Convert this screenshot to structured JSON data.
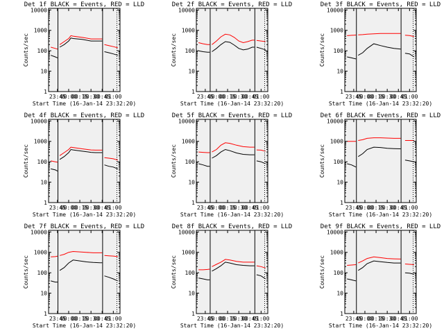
{
  "figure": {
    "xlabel": "Start Time (16-Jan-14 23:32:20)",
    "ylabel": "Counts/sec",
    "x_tick_labels": [
      "23:45",
      "00:00",
      "00:15",
      "00:30",
      "00:45",
      "01:00"
    ],
    "x_tick_hours": [
      23.75,
      24.0,
      24.25,
      24.5,
      24.75,
      25.0
    ],
    "x_range_hours": [
      23.55,
      25.15
    ],
    "y_tick_labels": [
      "1",
      "10",
      "100",
      "1000",
      "10000"
    ],
    "y_tick_values": [
      1,
      10,
      100,
      1000,
      10000
    ],
    "y_range": [
      1,
      12000
    ],
    "y_scale": "log",
    "colors": {
      "events": "#000000",
      "lld": "#ff0000",
      "background": "#f0f0f0"
    }
  },
  "chart_data": [
    {
      "type": "line",
      "title": "Det 1f BLACK = Events, RED = LLD",
      "series": [
        {
          "x": [
            23.6,
            23.7,
            23.75,
            23.76,
            23.8,
            23.9,
            24.0,
            24.05,
            24.1,
            24.3,
            24.5,
            24.6,
            24.75,
            24.76,
            24.8,
            24.9,
            25.0,
            25.1
          ],
          "y": [
            150,
            130,
            120,
            null,
            200,
            280,
            400,
            550,
            520,
            450,
            380,
            380,
            380,
            null,
            200,
            180,
            160,
            140
          ]
        },
        {
          "x": [
            23.6,
            23.7,
            23.75,
            23.76,
            23.8,
            23.9,
            24.0,
            24.05,
            24.1,
            24.3,
            24.5,
            24.6,
            24.75,
            24.76,
            24.8,
            24.9,
            25.0,
            25.1
          ],
          "y": [
            60,
            50,
            45,
            null,
            150,
            200,
            300,
            420,
            400,
            360,
            300,
            300,
            300,
            null,
            90,
            80,
            70,
            60
          ]
        }
      ]
    },
    {
      "type": "line",
      "title": "Det 2f BLACK = Events, RED = LLD",
      "series": [
        {
          "x": [
            23.6,
            23.7,
            23.8,
            23.85,
            23.86,
            23.9,
            24.0,
            24.1,
            24.2,
            24.3,
            24.4,
            24.5,
            24.6,
            24.7,
            24.8,
            24.85,
            24.86,
            24.9,
            25.0,
            25.1
          ],
          "y": [
            250,
            220,
            200,
            200,
            null,
            200,
            300,
            480,
            650,
            600,
            450,
            300,
            250,
            280,
            330,
            330,
            null,
            320,
            300,
            280
          ]
        },
        {
          "x": [
            23.6,
            23.7,
            23.8,
            23.85,
            23.86,
            23.9,
            24.0,
            24.1,
            24.2,
            24.3,
            24.4,
            24.5,
            24.6,
            24.7,
            24.8,
            24.85,
            24.86,
            24.9,
            25.0,
            25.1
          ],
          "y": [
            100,
            90,
            85,
            85,
            null,
            90,
            130,
            200,
            280,
            260,
            190,
            130,
            110,
            120,
            150,
            150,
            null,
            150,
            130,
            110
          ]
        }
      ]
    },
    {
      "type": "line",
      "title": "Det 3f BLACK = Events, RED = LLD",
      "series": [
        {
          "x": [
            23.6,
            23.7,
            23.8,
            23.81,
            23.85,
            23.95,
            24.05,
            24.2,
            24.35,
            24.5,
            24.65,
            24.8,
            24.81,
            24.9,
            25.0,
            25.1
          ],
          "y": [
            550,
            570,
            590,
            null,
            600,
            620,
            650,
            680,
            700,
            700,
            700,
            700,
            null,
            580,
            560,
            500
          ]
        },
        {
          "x": [
            23.6,
            23.7,
            23.8,
            23.81,
            23.85,
            23.95,
            24.05,
            24.2,
            24.35,
            24.5,
            24.65,
            24.8,
            24.81,
            24.9,
            25.0,
            25.1
          ],
          "y": [
            50,
            45,
            40,
            null,
            60,
            80,
            130,
            220,
            180,
            150,
            130,
            120,
            null,
            75,
            70,
            50
          ]
        }
      ]
    },
    {
      "type": "line",
      "title": "Det 4f BLACK = Events, RED = LLD",
      "series": [
        {
          "x": [
            23.6,
            23.7,
            23.75,
            23.76,
            23.8,
            23.9,
            24.0,
            24.05,
            24.1,
            24.3,
            24.5,
            24.6,
            24.75,
            24.76,
            24.8,
            24.9,
            25.0,
            25.1
          ],
          "y": [
            110,
            100,
            95,
            null,
            200,
            280,
            400,
            520,
            500,
            430,
            380,
            370,
            370,
            null,
            160,
            150,
            140,
            120
          ]
        },
        {
          "x": [
            23.6,
            23.7,
            23.75,
            23.76,
            23.8,
            23.9,
            24.0,
            24.05,
            24.1,
            24.3,
            24.5,
            24.6,
            24.75,
            24.76,
            24.8,
            24.9,
            25.0,
            25.1
          ],
          "y": [
            45,
            40,
            35,
            null,
            130,
            180,
            280,
            400,
            380,
            330,
            290,
            280,
            280,
            null,
            70,
            60,
            55,
            45
          ]
        }
      ]
    },
    {
      "type": "line",
      "title": "Det 5f BLACK = Events, RED = LLD",
      "series": [
        {
          "x": [
            23.6,
            23.7,
            23.8,
            23.85,
            23.86,
            23.9,
            24.0,
            24.1,
            24.2,
            24.3,
            24.45,
            24.6,
            24.75,
            24.85,
            24.86,
            24.9,
            25.0,
            25.1
          ],
          "y": [
            300,
            290,
            280,
            280,
            null,
            300,
            400,
            650,
            850,
            800,
            650,
            550,
            520,
            520,
            null,
            380,
            370,
            330
          ]
        },
        {
          "x": [
            23.6,
            23.7,
            23.8,
            23.85,
            23.86,
            23.9,
            24.0,
            24.1,
            24.2,
            24.3,
            24.45,
            24.6,
            24.75,
            24.85,
            24.86,
            24.9,
            25.0,
            25.1
          ],
          "y": [
            80,
            70,
            60,
            60,
            null,
            150,
            200,
            300,
            400,
            350,
            270,
            230,
            220,
            220,
            null,
            110,
            100,
            80
          ]
        }
      ]
    },
    {
      "type": "line",
      "title": "Det 6f BLACK = Events, RED = LLD",
      "series": [
        {
          "x": [
            23.6,
            23.7,
            23.8,
            23.81,
            23.85,
            23.95,
            24.05,
            24.2,
            24.35,
            24.5,
            24.65,
            24.8,
            24.81,
            24.9,
            25.0,
            25.1
          ],
          "y": [
            1000,
            1000,
            1000,
            null,
            1100,
            1200,
            1400,
            1500,
            1500,
            1450,
            1400,
            1400,
            null,
            1100,
            1100,
            1100
          ]
        },
        {
          "x": [
            23.6,
            23.7,
            23.8,
            23.81,
            23.85,
            23.95,
            24.05,
            24.2,
            24.35,
            24.5,
            24.65,
            24.8,
            24.81,
            24.9,
            25.0,
            25.1
          ],
          "y": [
            80,
            70,
            55,
            null,
            180,
            250,
            400,
            520,
            500,
            460,
            440,
            430,
            null,
            120,
            110,
            100
          ]
        }
      ]
    },
    {
      "type": "line",
      "title": "Det 7f BLACK = Events, RED = LLD",
      "series": [
        {
          "x": [
            23.6,
            23.7,
            23.75,
            23.76,
            23.8,
            23.9,
            24.0,
            24.1,
            24.25,
            24.4,
            24.55,
            24.7,
            24.75,
            24.76,
            24.8,
            24.9,
            25.0,
            25.1
          ],
          "y": [
            600,
            620,
            650,
            null,
            700,
            800,
            1000,
            1100,
            1050,
            1000,
            950,
            950,
            950,
            null,
            700,
            680,
            660,
            620
          ]
        },
        {
          "x": [
            23.6,
            23.7,
            23.75,
            23.76,
            23.8,
            23.9,
            24.0,
            24.1,
            24.25,
            24.4,
            24.55,
            24.7,
            24.75,
            24.76,
            24.8,
            24.9,
            25.0,
            25.1
          ],
          "y": [
            40,
            35,
            35,
            null,
            130,
            180,
            300,
            420,
            380,
            340,
            320,
            310,
            310,
            null,
            70,
            60,
            50,
            40
          ]
        }
      ]
    },
    {
      "type": "line",
      "title": "Det 8f BLACK = Events, RED = LLD",
      "series": [
        {
          "x": [
            23.6,
            23.7,
            23.8,
            23.85,
            23.86,
            23.9,
            24.0,
            24.1,
            24.2,
            24.3,
            24.45,
            24.6,
            24.75,
            24.85,
            24.86,
            24.9,
            25.0,
            25.1
          ],
          "y": [
            140,
            140,
            145,
            150,
            null,
            200,
            260,
            330,
            450,
            420,
            360,
            330,
            330,
            330,
            null,
            220,
            200,
            170
          ]
        },
        {
          "x": [
            23.6,
            23.7,
            23.8,
            23.85,
            23.86,
            23.9,
            24.0,
            24.1,
            24.2,
            24.3,
            24.45,
            24.6,
            24.75,
            24.85,
            24.86,
            24.9,
            25.0,
            25.1
          ],
          "y": [
            55,
            50,
            45,
            45,
            null,
            120,
            160,
            220,
            330,
            300,
            250,
            230,
            220,
            220,
            null,
            80,
            70,
            50
          ]
        }
      ]
    },
    {
      "type": "line",
      "title": "Det 9f BLACK = Events, RED = LLD",
      "series": [
        {
          "x": [
            23.6,
            23.7,
            23.8,
            23.81,
            23.85,
            23.95,
            24.05,
            24.2,
            24.35,
            24.5,
            24.65,
            24.8,
            24.81,
            24.9,
            25.0,
            25.1
          ],
          "y": [
            230,
            240,
            250,
            null,
            300,
            380,
            500,
            600,
            550,
            500,
            480,
            470,
            null,
            270,
            260,
            250
          ]
        },
        {
          "x": [
            23.6,
            23.7,
            23.8,
            23.81,
            23.85,
            23.95,
            24.05,
            24.2,
            24.35,
            24.5,
            24.65,
            24.8,
            24.81,
            24.9,
            25.0,
            25.1
          ],
          "y": [
            50,
            45,
            40,
            null,
            130,
            180,
            280,
            380,
            350,
            320,
            300,
            300,
            null,
            100,
            95,
            85
          ]
        }
      ]
    }
  ]
}
